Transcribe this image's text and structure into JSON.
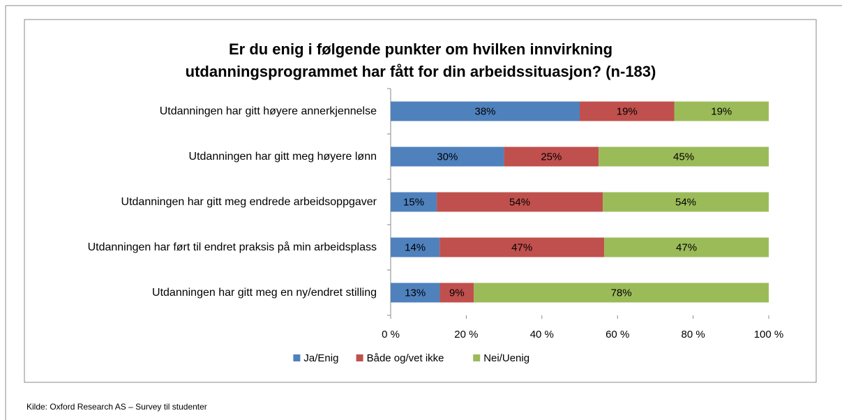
{
  "chart_data": {
    "type": "bar",
    "orientation": "horizontal",
    "stacked100": true,
    "title": [
      "Er du enig i følgende punkter om hvilken innvirkning",
      "utdanningsprogrammet har fått for din arbeidssituasjon? (n-183)"
    ],
    "categories": [
      "Utdanningen har gitt høyere annerkjennelse",
      "Utdanningen har gitt meg høyere lønn",
      "Utdanningen har gitt meg endrede arbeidsoppgaver",
      "Utdanningen har ført til endret praksis på min arbeidsplass",
      "Utdanningen har gitt meg en ny/endret stilling"
    ],
    "series": [
      {
        "name": "Ja/Enig",
        "color": "#4f81bd",
        "values": [
          38,
          30,
          15,
          14,
          13
        ],
        "value_labels": [
          "38%",
          "30%",
          "15%",
          "14%",
          "13%"
        ]
      },
      {
        "name": "Både og/vet ikke",
        "color": "#c0504d",
        "values": [
          19,
          25,
          54,
          47,
          9
        ],
        "value_labels": [
          "19%",
          "25%",
          "54%",
          "47%",
          "9%"
        ]
      },
      {
        "name": "Nei/Uenig",
        "color": "#9bbb59",
        "values": [
          19,
          45,
          54,
          47,
          78
        ],
        "value_labels": [
          "19%",
          "45%",
          "54%",
          "47%",
          "78%"
        ]
      }
    ],
    "xlim": [
      0,
      100
    ],
    "xticks": [
      {
        "value": 0,
        "label": "0 %"
      },
      {
        "value": 20,
        "label": "20 %"
      },
      {
        "value": 40,
        "label": "40 %"
      },
      {
        "value": 60,
        "label": "60 %"
      },
      {
        "value": 80,
        "label": "80 %"
      },
      {
        "value": 100,
        "label": "100 %"
      }
    ],
    "legend": "bottom"
  },
  "source": "Kilde: Oxford Research AS – Survey til studenter"
}
